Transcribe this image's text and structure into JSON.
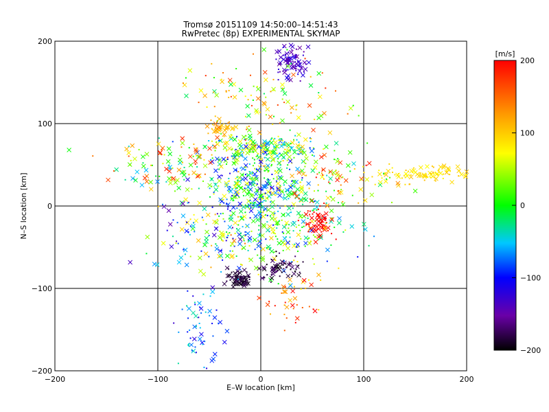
{
  "chart_data": {
    "type": "scatter",
    "title": "Tromsø 20151109 14:50:00–14:51:43",
    "subtitle": "RwPretec (8p) EXPERIMENTAL SKYMAP",
    "xlabel": "E–W location [km]",
    "ylabel": "N–S location [km]",
    "xlim": [
      -200,
      200
    ],
    "ylim": [
      -200,
      200
    ],
    "xticks": [
      "−200",
      "−100",
      "0",
      "100",
      "200"
    ],
    "yticks": [
      "−200",
      "−100",
      "0",
      "100",
      "200"
    ],
    "xtick_values": [
      -200,
      -100,
      0,
      100,
      200
    ],
    "ytick_values": [
      -200,
      -100,
      0,
      100,
      200
    ],
    "grid": true,
    "colorbar": {
      "label": "[m/s]",
      "range": [
        -200,
        200
      ],
      "tick_labels": [
        "200",
        "100",
        "0",
        "−100",
        "−200"
      ],
      "tick_values": [
        200,
        100,
        0,
        -100,
        -200
      ],
      "colormap": "rainbow (black–purple–blue–cyan–green–yellow–orange–red)"
    },
    "markers": [
      "x",
      "dot"
    ],
    "clusters": [
      {
        "x": 0,
        "y": 70,
        "sx": 30,
        "sy": 8,
        "n": 220,
        "vmean": 0,
        "vspread": 200
      },
      {
        "x": -5,
        "y": 25,
        "sx": 22,
        "sy": 18,
        "n": 260,
        "vmean": -20,
        "vspread": 200
      },
      {
        "x": 10,
        "y": -30,
        "sx": 35,
        "sy": 25,
        "n": 300,
        "vmean": 0,
        "vspread": 200
      },
      {
        "x": 30,
        "y": 175,
        "sx": 8,
        "sy": 9,
        "n": 90,
        "vmean": -130,
        "vspread": 50
      },
      {
        "x": -20,
        "y": -88,
        "sx": 6,
        "sy": 6,
        "n": 70,
        "vmean": -185,
        "vspread": 20
      },
      {
        "x": 20,
        "y": -75,
        "sx": 10,
        "sy": 8,
        "n": 60,
        "vmean": -185,
        "vspread": 40
      },
      {
        "x": 160,
        "y": 40,
        "sx": 25,
        "sy": 5,
        "n": 90,
        "vmean": 90,
        "vspread": 40
      },
      {
        "x": -60,
        "y": -150,
        "sx": 10,
        "sy": 25,
        "n": 60,
        "vmean": -80,
        "vspread": 100
      },
      {
        "x": -40,
        "y": 95,
        "sx": 8,
        "sy": 5,
        "n": 40,
        "vmean": 120,
        "vspread": 50
      },
      {
        "x": 55,
        "y": -20,
        "sx": 8,
        "sy": 8,
        "n": 60,
        "vmean": 200,
        "vspread": 30
      },
      {
        "x": 0,
        "y": 130,
        "sx": 40,
        "sy": 25,
        "n": 120,
        "vmean": 80,
        "vspread": 200
      },
      {
        "x": -80,
        "y": 50,
        "sx": 35,
        "sy": 15,
        "n": 120,
        "vmean": 60,
        "vspread": 250
      },
      {
        "x": 60,
        "y": 30,
        "sx": 35,
        "sy": 20,
        "n": 120,
        "vmean": 80,
        "vspread": 250
      },
      {
        "x": -50,
        "y": -30,
        "sx": 30,
        "sy": 30,
        "n": 100,
        "vmean": 0,
        "vspread": 300
      },
      {
        "x": 30,
        "y": -110,
        "sx": 20,
        "sy": 15,
        "n": 40,
        "vmean": 150,
        "vspread": 150
      }
    ]
  }
}
